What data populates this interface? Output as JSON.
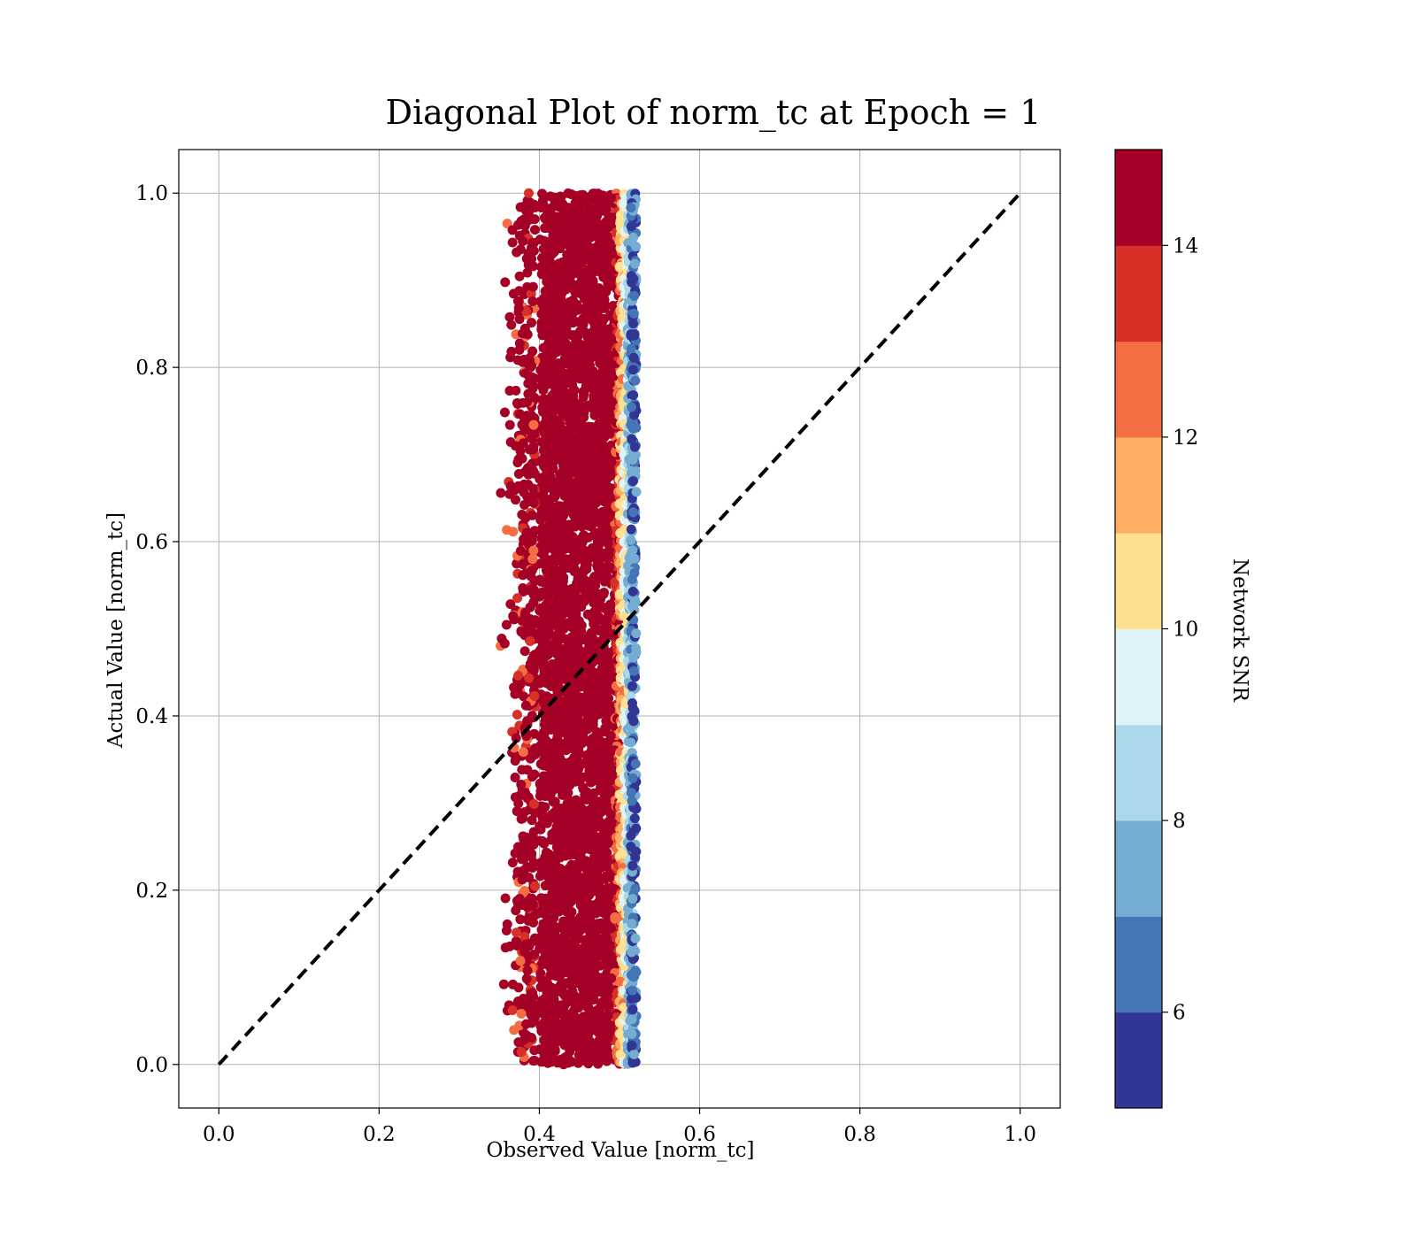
{
  "chart_data": {
    "type": "scatter",
    "title": "Diagonal Plot of norm_tc at Epoch = 1",
    "xlabel": "Observed Value [norm_tc]",
    "ylabel": "Actual Value [norm_tc]",
    "xlim": [
      -0.05,
      1.05
    ],
    "ylim": [
      -0.05,
      1.05
    ],
    "xticks": [
      "0.0",
      "0.2",
      "0.4",
      "0.6",
      "0.8",
      "1.0"
    ],
    "yticks": [
      "0.0",
      "0.2",
      "0.4",
      "0.6",
      "0.8",
      "1.0"
    ],
    "grid": true,
    "reference_line": {
      "style": "dashed",
      "color": "#000000",
      "x": [
        0.0,
        1.0
      ],
      "y": [
        0.0,
        1.0
      ]
    },
    "scatter": {
      "x_range": [
        0.34,
        0.52
      ],
      "y_range": [
        0.0,
        1.0
      ],
      "marker": "circle",
      "description_of_density": "dense vertical band; high-SNR points on left, low-SNR points on right edge"
    },
    "colorbar": {
      "label": "Network SNR",
      "range": [
        5,
        15
      ],
      "ticks": [
        "6",
        "8",
        "10",
        "12",
        "14"
      ],
      "colors": [
        "#313695",
        "#4575b4",
        "#74add1",
        "#abd9e9",
        "#e0f3f8",
        "#fee090",
        "#fdae61",
        "#f46d43",
        "#d73027",
        "#a50026"
      ]
    }
  }
}
